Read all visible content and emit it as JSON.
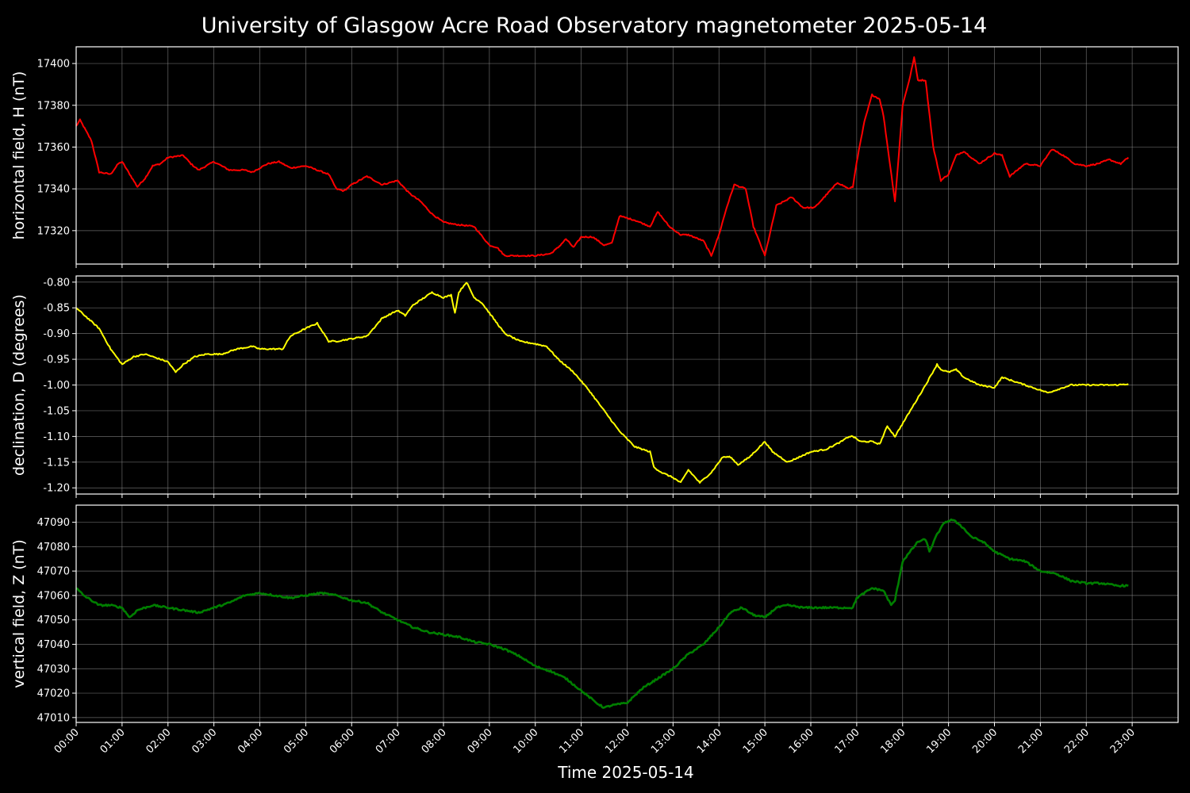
{
  "chart_data": {
    "type": "line",
    "title": "University of Glasgow Acre Road Observatory magnetometer 2025-05-14",
    "xlabel": "Time 2025-05-14",
    "x_ticks": [
      "00:00",
      "01:00",
      "02:00",
      "03:00",
      "04:00",
      "05:00",
      "06:00",
      "07:00",
      "08:00",
      "09:00",
      "10:00",
      "11:00",
      "12:00",
      "13:00",
      "14:00",
      "15:00",
      "16:00",
      "17:00",
      "18:00",
      "19:00",
      "20:00",
      "21:00",
      "22:00",
      "23:00"
    ],
    "xlim": [
      "00:00",
      "24:00"
    ],
    "grid": true,
    "panels": [
      {
        "ylabel": "horizontal field, H (nT)",
        "color": "#ff0000",
        "ylim": [
          17304,
          17408
        ],
        "y_ticks": [
          "17320",
          "17340",
          "17360",
          "17380",
          "17400"
        ],
        "x": [
          "00:00",
          "00:05",
          "00:20",
          "00:30",
          "00:45",
          "00:55",
          "01:00",
          "01:10",
          "01:20",
          "01:30",
          "01:40",
          "01:50",
          "02:00",
          "02:20",
          "02:30",
          "02:40",
          "03:00",
          "03:20",
          "03:40",
          "03:50",
          "04:00",
          "04:10",
          "04:25",
          "04:40",
          "05:00",
          "05:15",
          "05:30",
          "05:40",
          "05:50",
          "06:00",
          "06:20",
          "06:40",
          "07:00",
          "07:15",
          "07:30",
          "07:45",
          "08:00",
          "08:15",
          "08:40",
          "09:00",
          "09:10",
          "09:20",
          "09:40",
          "10:00",
          "10:20",
          "10:30",
          "10:40",
          "10:50",
          "11:00",
          "11:15",
          "11:30",
          "11:40",
          "11:50",
          "12:10",
          "12:30",
          "12:40",
          "12:55",
          "13:10",
          "13:20",
          "13:40",
          "13:50",
          "14:00",
          "14:10",
          "14:20",
          "14:35",
          "14:45",
          "15:00",
          "15:15",
          "15:35",
          "15:50",
          "16:05",
          "16:20",
          "16:35",
          "16:50",
          "16:55",
          "17:00",
          "17:10",
          "17:20",
          "17:30",
          "17:35",
          "17:50",
          "17:55",
          "18:00",
          "18:10",
          "18:15",
          "18:20",
          "18:30",
          "18:40",
          "18:50",
          "19:00",
          "19:10",
          "19:20",
          "19:40",
          "20:00",
          "20:10",
          "20:20",
          "20:40",
          "21:00",
          "21:15",
          "21:30",
          "21:45",
          "22:00",
          "22:15",
          "22:30",
          "22:45",
          "22:55"
        ],
        "values": [
          17370,
          17373,
          17363,
          17348,
          17347,
          17352,
          17353,
          17347,
          17341,
          17345,
          17351,
          17352,
          17355,
          17356,
          17352,
          17349,
          17353,
          17349,
          17349,
          17348,
          17350,
          17352,
          17353,
          17350,
          17351,
          17349,
          17347,
          17340,
          17339,
          17342,
          17346,
          17342,
          17344,
          17338,
          17334,
          17328,
          17324,
          17323,
          17322,
          17313,
          17312,
          17308,
          17308,
          17308,
          17309,
          17312,
          17316,
          17312,
          17317,
          17317,
          17313,
          17314,
          17327,
          17325,
          17322,
          17329,
          17322,
          17318,
          17318,
          17315,
          17308,
          17318,
          17331,
          17342,
          17340,
          17322,
          17308,
          17332,
          17336,
          17331,
          17331,
          17337,
          17343,
          17340,
          17341,
          17353,
          17372,
          17385,
          17383,
          17375,
          17334,
          17356,
          17380,
          17394,
          17403,
          17392,
          17392,
          17360,
          17344,
          17347,
          17356,
          17358,
          17352,
          17357,
          17356,
          17346,
          17352,
          17351,
          17359,
          17356,
          17352,
          17351,
          17352,
          17354,
          17352,
          17355
        ]
      },
      {
        "ylabel": "declination, D (degrees)",
        "color": "#ffff00",
        "ylim": [
          -1.212,
          -0.788
        ],
        "y_ticks": [
          "-0.80",
          "-0.85",
          "-0.90",
          "-0.95",
          "-1.00",
          "-1.05",
          "-1.10",
          "-1.15",
          "-1.20"
        ],
        "x": [
          "00:00",
          "00:15",
          "00:30",
          "00:45",
          "01:00",
          "01:15",
          "01:30",
          "02:00",
          "02:10",
          "02:20",
          "02:35",
          "02:50",
          "03:10",
          "03:30",
          "03:50",
          "04:00",
          "04:20",
          "04:30",
          "04:40",
          "05:00",
          "05:15",
          "05:30",
          "05:40",
          "06:00",
          "06:20",
          "06:40",
          "07:00",
          "07:10",
          "07:20",
          "07:30",
          "07:45",
          "08:00",
          "08:10",
          "08:15",
          "08:20",
          "08:25",
          "08:30",
          "08:40",
          "08:50",
          "09:00",
          "09:10",
          "09:20",
          "09:40",
          "10:00",
          "10:15",
          "10:30",
          "10:50",
          "11:10",
          "11:30",
          "11:50",
          "12:10",
          "12:30",
          "12:35",
          "12:45",
          "13:00",
          "13:10",
          "13:20",
          "13:35",
          "13:50",
          "14:05",
          "14:15",
          "14:25",
          "14:40",
          "15:00",
          "15:10",
          "15:30",
          "15:45",
          "16:00",
          "16:20",
          "16:40",
          "16:50",
          "16:55",
          "17:05",
          "17:20",
          "17:30",
          "17:40",
          "17:50",
          "18:10",
          "18:30",
          "18:45",
          "18:50",
          "19:00",
          "19:10",
          "19:20",
          "19:40",
          "20:00",
          "20:10",
          "20:20",
          "20:40",
          "21:00",
          "21:10",
          "21:20",
          "21:40",
          "22:00",
          "22:20",
          "22:40",
          "22:55"
        ],
        "values": [
          -0.85,
          -0.87,
          -0.89,
          -0.93,
          -0.96,
          -0.945,
          -0.94,
          -0.955,
          -0.975,
          -0.96,
          -0.945,
          -0.94,
          -0.94,
          -0.93,
          -0.925,
          -0.93,
          -0.93,
          -0.93,
          -0.905,
          -0.89,
          -0.88,
          -0.915,
          -0.915,
          -0.91,
          -0.905,
          -0.87,
          -0.855,
          -0.865,
          -0.845,
          -0.835,
          -0.82,
          -0.83,
          -0.825,
          -0.86,
          -0.82,
          -0.81,
          -0.8,
          -0.83,
          -0.84,
          -0.86,
          -0.88,
          -0.9,
          -0.915,
          -0.92,
          -0.925,
          -0.95,
          -0.975,
          -1.01,
          -1.05,
          -1.09,
          -1.12,
          -1.13,
          -1.16,
          -1.17,
          -1.18,
          -1.19,
          -1.165,
          -1.19,
          -1.17,
          -1.14,
          -1.14,
          -1.155,
          -1.14,
          -1.11,
          -1.13,
          -1.15,
          -1.14,
          -1.13,
          -1.125,
          -1.11,
          -1.1,
          -1.1,
          -1.11,
          -1.11,
          -1.115,
          -1.08,
          -1.1,
          -1.05,
          -1.0,
          -0.96,
          -0.97,
          -0.975,
          -0.97,
          -0.985,
          -1.0,
          -1.005,
          -0.985,
          -0.99,
          -1.0,
          -1.01,
          -1.015,
          -1.01,
          -1.0,
          -1.0,
          -1.0,
          -1.0,
          -0.998
        ]
      },
      {
        "ylabel": "vertical field, Z (nT)",
        "color": "#007f00",
        "ylim": [
          47008,
          47097
        ],
        "y_ticks": [
          "47010",
          "47020",
          "47030",
          "47040",
          "47050",
          "47060",
          "47070",
          "47080",
          "47090"
        ],
        "x": [
          "00:00",
          "00:10",
          "00:30",
          "00:45",
          "01:00",
          "01:10",
          "01:20",
          "01:40",
          "02:00",
          "02:20",
          "02:40",
          "03:00",
          "03:20",
          "03:40",
          "04:00",
          "04:20",
          "04:40",
          "05:00",
          "05:20",
          "05:40",
          "06:00",
          "06:20",
          "06:40",
          "07:00",
          "07:20",
          "07:40",
          "08:00",
          "08:20",
          "08:40",
          "09:00",
          "09:20",
          "09:40",
          "10:00",
          "10:20",
          "10:40",
          "11:00",
          "11:20",
          "11:30",
          "11:40",
          "12:00",
          "12:20",
          "12:40",
          "13:00",
          "13:20",
          "13:40",
          "14:00",
          "14:15",
          "14:30",
          "14:45",
          "15:00",
          "15:15",
          "15:30",
          "15:50",
          "16:10",
          "16:30",
          "16:50",
          "16:55",
          "17:00",
          "17:20",
          "17:35",
          "17:45",
          "17:50",
          "18:00",
          "18:20",
          "18:30",
          "18:35",
          "18:45",
          "18:55",
          "19:05",
          "19:15",
          "19:30",
          "19:45",
          "20:00",
          "20:20",
          "20:40",
          "21:00",
          "21:20",
          "21:40",
          "22:00",
          "22:20",
          "22:40",
          "22:55"
        ],
        "values": [
          47063,
          47060,
          47056,
          47056,
          47055,
          47051,
          47054,
          47056,
          47055,
          47054,
          47053,
          47055,
          47057,
          47060,
          47061,
          47060,
          47059,
          47060,
          47061,
          47060,
          47058,
          47057,
          47053,
          47050,
          47047,
          47045,
          47044,
          47043,
          47041,
          47040,
          47038,
          47035,
          47031,
          47029,
          47026,
          47021,
          47016,
          47014,
          47015,
          47016,
          47022,
          47026,
          47030,
          47036,
          47040,
          47047,
          47053,
          47055,
          47052,
          47051,
          47055,
          47056,
          47055,
          47055,
          47055,
          47055,
          47055,
          47059,
          47063,
          47062,
          47056,
          47058,
          47074,
          47082,
          47083,
          47078,
          47085,
          47090,
          47091,
          47089,
          47084,
          47082,
          47078,
          47075,
          47074,
          47070,
          47069,
          47066,
          47065,
          47065,
          47064,
          47064
        ]
      }
    ]
  }
}
